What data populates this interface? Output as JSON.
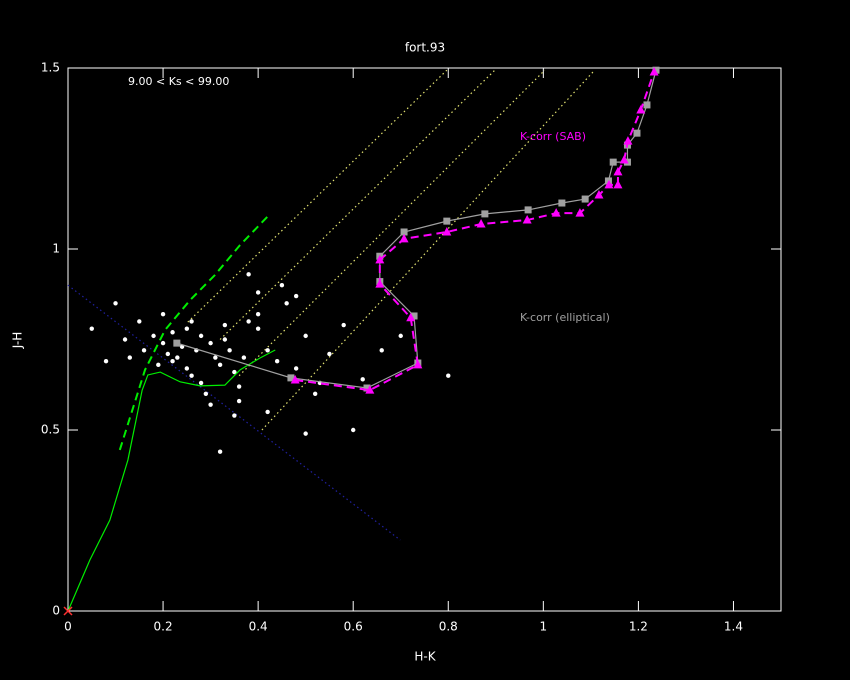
{
  "chart_data": {
    "type": "scatter",
    "title": "fort.93",
    "xlabel": "H-K",
    "ylabel": "J-H",
    "xlim": [
      0,
      1.5
    ],
    "ylim": [
      0,
      1.5
    ],
    "xticks": [
      0,
      0.2,
      0.4,
      0.6,
      0.8,
      1,
      1.2,
      1.4
    ],
    "yticks": [
      0,
      0.5,
      1,
      1.5
    ],
    "annotations": [
      {
        "text": "9.00 < Ks <  99.00",
        "color": "#ffffff"
      },
      {
        "text": "K-corr (SAB)",
        "color": "#ff00ff"
      },
      {
        "text": "K-corr (elliptical)",
        "color": "#a0a0a0"
      }
    ],
    "series": [
      {
        "color": "#2020a0",
        "style": "dotted",
        "x": [
          0,
          0.699
        ],
        "values": [
          0.9,
          0.196
        ]
      },
      {
        "color": "#e0e070",
        "style": "dotted",
        "x": [
          0.252,
          0.797
        ],
        "values": [
          0.798,
          1.494
        ]
      },
      {
        "color": "#e0e070",
        "style": "dotted",
        "x": [
          0.32,
          0.898
        ],
        "values": [
          0.75,
          1.494
        ]
      },
      {
        "color": "#e0e070",
        "style": "dotted",
        "x": [
          0.36,
          1.003
        ],
        "values": [
          0.65,
          1.494
        ]
      },
      {
        "color": "#e0e070",
        "style": "dotted",
        "x": [
          0.408,
          1.108
        ],
        "values": [
          0.5,
          1.494
        ]
      },
      {
        "color": "#ffffff",
        "style": "points",
        "marker": "dot",
        "x": [
          0.05,
          0.08,
          0.1,
          0.12,
          0.13,
          0.15,
          0.16,
          0.18,
          0.19,
          0.2,
          0.21,
          0.22,
          0.23,
          0.24,
          0.25,
          0.26,
          0.27,
          0.28,
          0.29,
          0.3,
          0.31,
          0.32,
          0.33,
          0.34,
          0.35,
          0.36,
          0.37,
          0.38,
          0.4,
          0.42,
          0.44,
          0.46,
          0.48,
          0.5,
          0.52,
          0.55,
          0.58,
          0.6,
          0.62,
          0.66,
          0.7,
          0.8,
          0.45,
          0.42,
          0.4,
          0.3,
          0.32,
          0.28,
          0.26,
          0.35,
          0.38,
          0.25,
          0.22,
          0.2,
          0.33,
          0.36,
          0.4,
          0.48,
          0.5,
          0.53
        ],
        "values": [
          0.78,
          0.69,
          0.85,
          0.75,
          0.7,
          0.8,
          0.72,
          0.76,
          0.68,
          0.74,
          0.71,
          0.77,
          0.7,
          0.73,
          0.78,
          0.65,
          0.72,
          0.76,
          0.6,
          0.74,
          0.7,
          0.68,
          0.75,
          0.72,
          0.66,
          0.62,
          0.7,
          0.8,
          0.78,
          0.72,
          0.69,
          0.85,
          0.67,
          0.76,
          0.6,
          0.71,
          0.79,
          0.5,
          0.64,
          0.72,
          0.76,
          0.65,
          0.9,
          0.55,
          0.88,
          0.57,
          0.44,
          0.63,
          0.8,
          0.54,
          0.93,
          0.67,
          0.69,
          0.82,
          0.79,
          0.58,
          0.82,
          0.87,
          0.49,
          0.63
        ]
      },
      {
        "color": "#00ee00",
        "style": "solid",
        "x": [
          0,
          0.046,
          0.088,
          0.126,
          0.156,
          0.168,
          0.194,
          0.236,
          0.278,
          0.33,
          0.362,
          0.404,
          0.436
        ],
        "values": [
          0,
          0.141,
          0.251,
          0.417,
          0.61,
          0.652,
          0.66,
          0.633,
          0.622,
          0.624,
          0.666,
          0.699,
          0.721
        ]
      },
      {
        "color": "#00ee00",
        "style": "dashed",
        "x": [
          0.109,
          0.162,
          0.204,
          0.257,
          0.309,
          0.362,
          0.421
        ],
        "values": [
          0.445,
          0.666,
          0.776,
          0.859,
          0.928,
          1.011,
          1.091
        ]
      },
      {
        "color": "#a0a0a0",
        "style": "solid",
        "marker": "square",
        "x": [
          0.229,
          0.469,
          0.629,
          0.736,
          0.728,
          0.656,
          0.656,
          0.707,
          0.797,
          0.877,
          0.968,
          1.039,
          1.088,
          1.137,
          1.147,
          1.177,
          1.177,
          1.197,
          1.218,
          1.237
        ],
        "values": [
          0.74,
          0.644,
          0.616,
          0.685,
          0.815,
          0.91,
          0.98,
          1.047,
          1.077,
          1.097,
          1.108,
          1.127,
          1.138,
          1.188,
          1.24,
          1.24,
          1.287,
          1.32,
          1.398,
          1.494
        ]
      },
      {
        "color": "#ff00ff",
        "style": "dashed",
        "marker": "triangle",
        "x": [
          0.478,
          0.635,
          0.736,
          0.721,
          0.656,
          0.656,
          0.707,
          0.797,
          0.869,
          0.966,
          1.027,
          1.077,
          1.117,
          1.138,
          1.157,
          1.157,
          1.17,
          1.178,
          1.205,
          1.233
        ],
        "values": [
          0.638,
          0.61,
          0.68,
          0.81,
          0.903,
          0.97,
          1.028,
          1.047,
          1.069,
          1.08,
          1.099,
          1.099,
          1.149,
          1.177,
          1.177,
          1.213,
          1.246,
          1.298,
          1.384,
          1.489
        ]
      },
      {
        "color": "#ff3030",
        "style": "points",
        "marker": "cross",
        "x": [
          0
        ],
        "values": [
          0
        ]
      }
    ]
  }
}
